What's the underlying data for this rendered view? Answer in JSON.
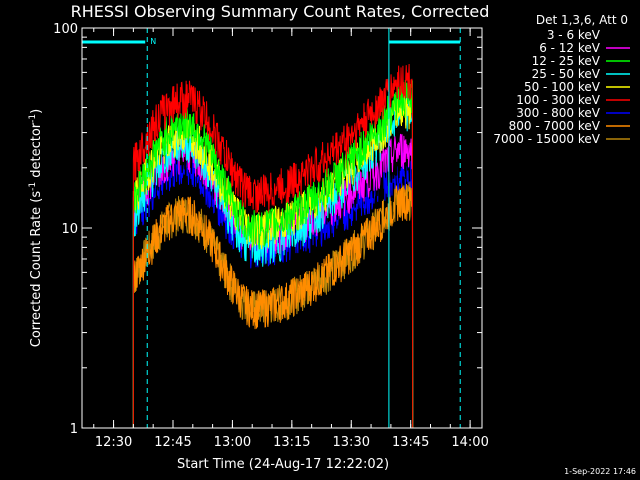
{
  "chart_data": {
    "type": "line",
    "title": "RHESSI Observing Summary Count Rates, Corrected",
    "xlabel": "Start Time (24-Aug-17 12:22:02)",
    "ylabel": "Corrected Count Rate (s",
    "ylabel_sup1": "-1",
    "ylabel_mid": " detector",
    "ylabel_sup2": "-1",
    "ylabel_end": ")",
    "y_scale": "log",
    "ylim": [
      1,
      100
    ],
    "xlim": [
      "12:22:02",
      "14:03:00"
    ],
    "x_ticks": [
      "12:30",
      "12:45",
      "13:00",
      "13:15",
      "13:30",
      "13:45",
      "14:00"
    ],
    "y_ticks": [
      "1",
      "10",
      "100"
    ],
    "legend_title": "Det 1,3,6, Att 0",
    "legend_placement": "right",
    "night_marker": "N",
    "timestamp": "1-Sep-2022 17:46",
    "bands": [
      {
        "label": "3 - 6 keV",
        "color": "#000000",
        "peak1": 24,
        "trough": 10,
        "peak2": 22
      },
      {
        "label": "6 - 12 keV",
        "color": "#ff00ff",
        "peak1": 24,
        "trough": 9,
        "peak2": 25
      },
      {
        "label": "12 - 25 keV",
        "color": "#00ff00",
        "peak1": 34,
        "trough": 10,
        "peak2": 45
      },
      {
        "label": "25 - 50 keV",
        "color": "#00ffff",
        "peak1": 27,
        "trough": 8,
        "peak2": 38
      },
      {
        "label": "50 - 100 keV",
        "color": "#ffff00",
        "peak1": 30,
        "trough": 10,
        "peak2": 40
      },
      {
        "label": "100 - 300 keV",
        "color": "#ff0000",
        "peak1": 45,
        "trough": 15,
        "peak2": 55
      },
      {
        "label": "300 - 800 keV",
        "color": "#0000ff",
        "peak1": 20,
        "trough": 8,
        "peak2": 20
      },
      {
        "label": "800 - 7000 keV",
        "color": "#ff8c00",
        "peak1": 12,
        "trough": 4,
        "peak2": 14
      },
      {
        "label": "7000 - 15000 keV",
        "color": "#b8860b",
        "peak1": 12,
        "trough": 4,
        "peak2": 14
      }
    ]
  }
}
